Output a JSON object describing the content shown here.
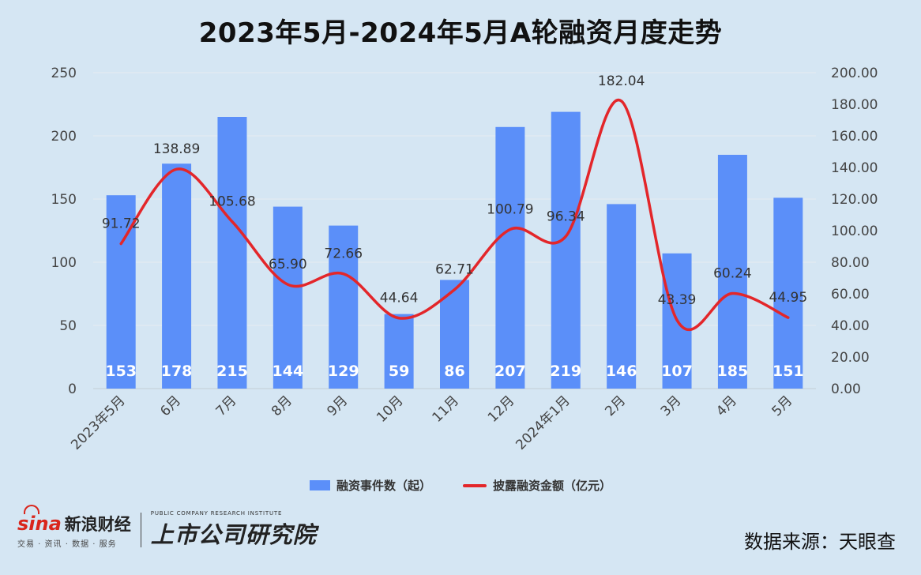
{
  "title": "2023年5月-2024年5月A轮融资月度走势",
  "chart_data": {
    "type": "bar+line",
    "title": "2023年5月-2024年5月A轮融资月度走势",
    "categories": [
      "2023年5月",
      "6月",
      "7月",
      "8月",
      "9月",
      "10月",
      "11月",
      "12月",
      "2024年1月",
      "2月",
      "3月",
      "4月",
      "5月"
    ],
    "series": [
      {
        "name": "融资事件数（起）",
        "type": "bar",
        "axis": "left",
        "color": "#5b8ff9",
        "values": [
          153,
          178,
          215,
          144,
          129,
          59,
          86,
          207,
          219,
          146,
          107,
          185,
          151
        ]
      },
      {
        "name": "披露融资金额（亿元）",
        "type": "line",
        "axis": "right",
        "color": "#e3262a",
        "values": [
          91.72,
          138.89,
          105.68,
          65.9,
          72.66,
          44.64,
          62.71,
          100.79,
          96.34,
          182.04,
          43.39,
          60.24,
          44.95
        ],
        "labels": [
          "91.72",
          "138.89",
          "105.68",
          "65.90",
          "72.66",
          "44.64",
          "62.71",
          "100.79",
          "96.34",
          "182.04",
          "43.39",
          "60.24",
          "44.95"
        ]
      }
    ],
    "y_left": {
      "min": 0,
      "max": 250,
      "ticks": [
        "0",
        "50",
        "100",
        "150",
        "200",
        "250"
      ]
    },
    "y_right": {
      "min": 0,
      "max": 200,
      "ticks": [
        "0.00",
        "20.00",
        "40.00",
        "60.00",
        "80.00",
        "100.00",
        "120.00",
        "140.00",
        "160.00",
        "180.00",
        "200.00"
      ]
    },
    "grid": true,
    "legend": "bottom"
  },
  "legend": {
    "bar_label": "融资事件数（起）",
    "line_label": "披露融资金额（亿元）"
  },
  "footer": {
    "sina_mark": "sina",
    "sina_name": "新浪财经",
    "sina_sub": "交易 · 资讯 · 数据 · 服务",
    "inst_en": "PUBLIC COMPANY RESEARCH INSTITUTE",
    "inst_cn": "上市公司研究院",
    "source": "数据来源：天眼查"
  }
}
